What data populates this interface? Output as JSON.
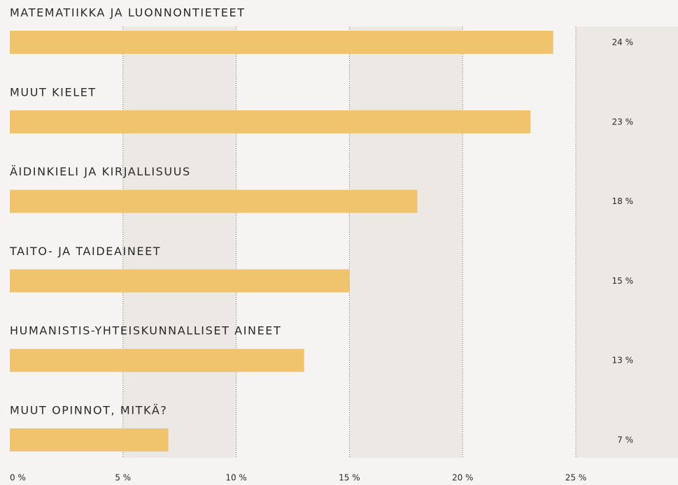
{
  "chart_data": {
    "type": "barh",
    "categories": [
      "MATEMATIIKKA JA LUONNONTIETEET",
      "MUUT KIELET",
      "ÄIDINKIELI JA KIRJALLISUUS",
      "TAITO- JA TAIDEAINEET",
      "HUMANISTIS-YHTEISKUNNALLISET AINEET",
      "MUUT OPINNOT, MITKÄ?"
    ],
    "values": [
      24,
      23,
      18,
      15,
      13,
      7
    ],
    "value_labels": [
      "24 %",
      "23 %",
      "18 %",
      "15 %",
      "13 %",
      "7 %"
    ],
    "color": "#f0c46c",
    "xlim": [
      0,
      25
    ],
    "xticks": [
      {
        "value": 0,
        "label": "0 %"
      },
      {
        "value": 5,
        "label": "5 %"
      },
      {
        "value": 10,
        "label": "10 %"
      },
      {
        "value": 15,
        "label": "15 %"
      },
      {
        "value": 20,
        "label": "20 %"
      },
      {
        "value": 25,
        "label": "25 %"
      }
    ],
    "grid": true
  }
}
